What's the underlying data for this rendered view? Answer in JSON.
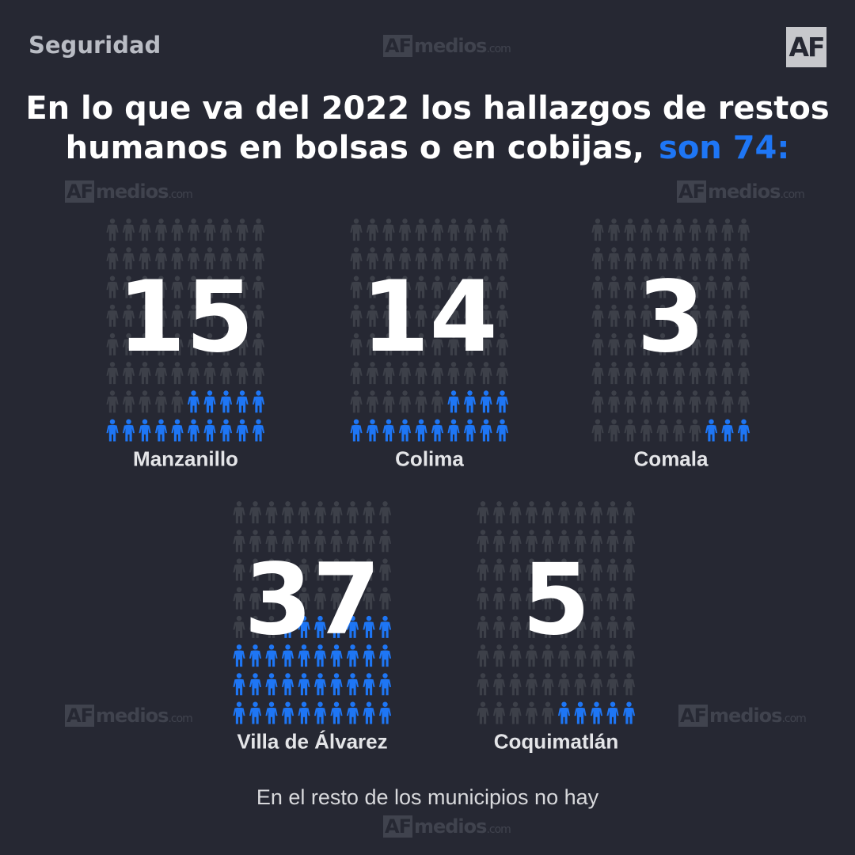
{
  "header": {
    "section": "Seguridad",
    "logo": "AF"
  },
  "watermark": {
    "brand": "AF",
    "name": "medios",
    "domain": ".com"
  },
  "title": {
    "line1": "En lo que va del 2022 los hallazgos de restos",
    "line2": "humanos en bolsas o en cobijas,",
    "highlight": "son 74:"
  },
  "footnote": "En el resto de los municipios no hay",
  "colors": {
    "background": "#262833",
    "highlight": "#1e76f5",
    "inactive": "#3d4049"
  },
  "icons": {
    "figure": "person-icon"
  },
  "chart_data": {
    "type": "pictogram",
    "title": "En lo que va del 2022 los hallazgos de restos humanos en bolsas o en cobijas, son 74:",
    "total": 74,
    "grid": {
      "columns": 10,
      "rows": 8,
      "icons_per_block": 80
    },
    "categories": [
      "Manzanillo",
      "Colima",
      "Comala",
      "Villa de Álvarez",
      "Coquimatlán"
    ],
    "values": [
      15,
      14,
      3,
      37,
      5
    ]
  }
}
